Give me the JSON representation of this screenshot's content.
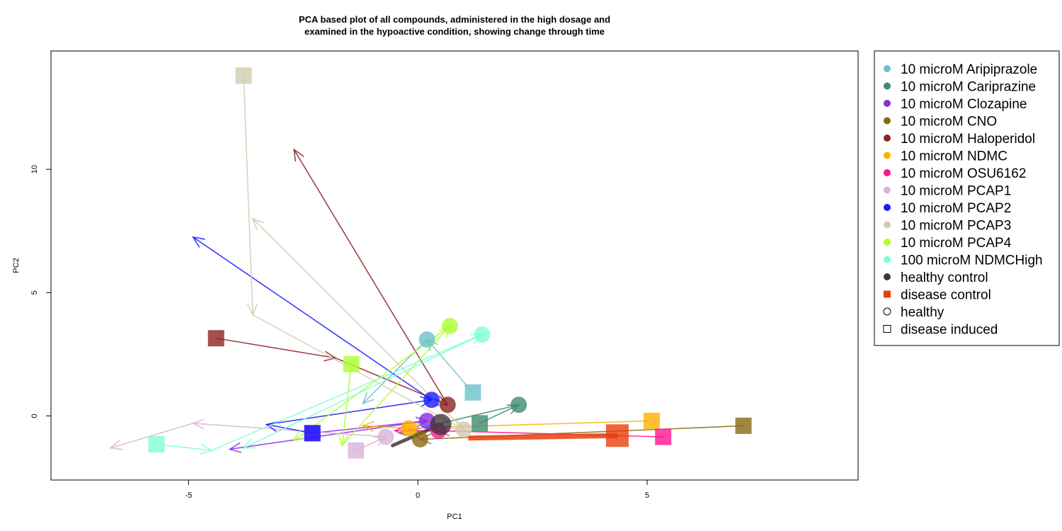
{
  "chart_data": {
    "type": "scatter",
    "title_line1": "PCA based plot of all compounds, administered in the high dosage and",
    "title_line2": "examined in the hypoactive condition, showing change through time",
    "xlabel": "PC1",
    "ylabel": "PC2",
    "xlim": [
      -8.0,
      9.6
    ],
    "ylim": [
      -2.6,
      14.8
    ],
    "x_ticks": [
      -5,
      0,
      5
    ],
    "y_ticks": [
      0,
      5,
      10
    ],
    "grid": false,
    "legend_position": "right",
    "shape_legend": [
      {
        "label": "healthy",
        "shape": "open-circle"
      },
      {
        "label": "disease induced",
        "shape": "open-square"
      }
    ],
    "series": [
      {
        "name": "10 microM Aripiprazole",
        "color": "#6cc2ca",
        "healthy": [
          0.2,
          3.1
        ],
        "disease": [
          1.2,
          0.95
        ],
        "path": [
          [
            1.2,
            0.95
          ],
          [
            0.2,
            3.1
          ],
          [
            -1.2,
            0.5
          ]
        ]
      },
      {
        "name": "10 microM Cariprazine",
        "color": "#3f8a6e",
        "healthy": [
          2.2,
          0.45
        ],
        "disease": [
          1.35,
          -0.3
        ],
        "path": [
          [
            1.35,
            -0.3
          ],
          [
            2.2,
            0.45
          ],
          [
            -0.4,
            -0.7
          ]
        ]
      },
      {
        "name": "10 microM Clozapine",
        "color": "#8a2be2",
        "healthy": [
          0.2,
          -0.2
        ],
        "disease": [
          -2.3,
          -0.7
        ],
        "path": [
          [
            -2.3,
            -0.7
          ],
          [
            0.2,
            -0.2
          ],
          [
            -4.1,
            -1.35
          ]
        ]
      },
      {
        "name": "10 microM CNO",
        "color": "#8b6914",
        "healthy": [
          0.05,
          -0.95
        ],
        "disease": [
          7.1,
          -0.4
        ],
        "path": [
          [
            7.1,
            -0.4
          ],
          [
            0.05,
            -0.95
          ],
          [
            -0.2,
            -0.5
          ]
        ]
      },
      {
        "name": "10 microM Haloperidol",
        "color": "#8b2323",
        "healthy": [
          0.65,
          0.45
        ],
        "disease": [
          -4.4,
          3.15
        ],
        "path": [
          [
            -4.4,
            3.15
          ],
          [
            -1.8,
            2.35
          ],
          [
            0.65,
            0.45
          ],
          [
            -2.7,
            10.8
          ]
        ]
      },
      {
        "name": "10 microM NDMC",
        "color": "#ffb000",
        "healthy": [
          -0.2,
          -0.5
        ],
        "disease": [
          5.1,
          -0.2
        ],
        "path": [
          [
            5.1,
            -0.2
          ],
          [
            -0.2,
            -0.5
          ],
          [
            -1.2,
            -0.4
          ]
        ]
      },
      {
        "name": "10 microM OSU6162",
        "color": "#ff1493",
        "healthy": [
          0.45,
          -0.6
        ],
        "disease": [
          5.35,
          -0.85
        ],
        "path": [
          [
            5.35,
            -0.85
          ],
          [
            0.45,
            -0.6
          ],
          [
            -0.5,
            -0.6
          ]
        ]
      },
      {
        "name": "10 microM PCAP1",
        "color": "#d8b4d8",
        "healthy": [
          -0.7,
          -0.85
        ],
        "disease": [
          -1.35,
          -1.4
        ],
        "path": [
          [
            -1.35,
            -1.4
          ],
          [
            -0.7,
            -0.85
          ],
          [
            -4.9,
            -0.3
          ],
          [
            -6.7,
            -1.3
          ]
        ]
      },
      {
        "name": "10 microM PCAP2",
        "color": "#1a1aff",
        "healthy": [
          0.3,
          0.65
        ],
        "disease": [
          -2.3,
          -0.7
        ],
        "path": [
          [
            -2.3,
            -0.7
          ],
          [
            -3.3,
            -0.35
          ],
          [
            0.3,
            0.65
          ],
          [
            -4.9,
            7.25
          ]
        ]
      },
      {
        "name": "10 microM PCAP3",
        "color": "#d2ccb0",
        "healthy": [
          1.0,
          -0.55
        ],
        "disease": [
          -3.8,
          13.8
        ],
        "path": [
          [
            -3.8,
            13.8
          ],
          [
            -3.6,
            4.1
          ],
          [
            1.0,
            -0.55
          ],
          [
            -3.6,
            8.0
          ]
        ]
      },
      {
        "name": "10 microM PCAP4",
        "color": "#adff2f",
        "healthy": [
          0.7,
          3.65
        ],
        "disease": [
          -1.45,
          2.1
        ],
        "path": [
          [
            -1.45,
            2.1
          ],
          [
            -1.65,
            -1.2
          ],
          [
            0.7,
            3.65
          ],
          [
            -2.7,
            -1.0
          ]
        ]
      },
      {
        "name": "100 microM NDMCHigh",
        "color": "#7fffd4",
        "healthy": [
          1.4,
          3.3
        ],
        "disease": [
          -5.7,
          -1.15
        ],
        "path": [
          [
            -5.7,
            -1.15
          ],
          [
            -4.5,
            -1.4
          ],
          [
            1.4,
            3.3
          ],
          [
            -3.8,
            -1.3
          ]
        ]
      },
      {
        "name": "healthy control",
        "color": "#3a3a3a",
        "healthy": [
          0.5,
          -0.35
        ],
        "disease": null,
        "path": [
          [
            0.5,
            -0.35
          ],
          [
            -0.55,
            -1.2
          ]
        ]
      },
      {
        "name": "disease control",
        "color": "#e8400a",
        "healthy": null,
        "disease": [
          4.35,
          -0.8
        ],
        "path": [
          [
            4.35,
            -0.8
          ],
          [
            1.1,
            -0.9
          ]
        ]
      }
    ]
  }
}
